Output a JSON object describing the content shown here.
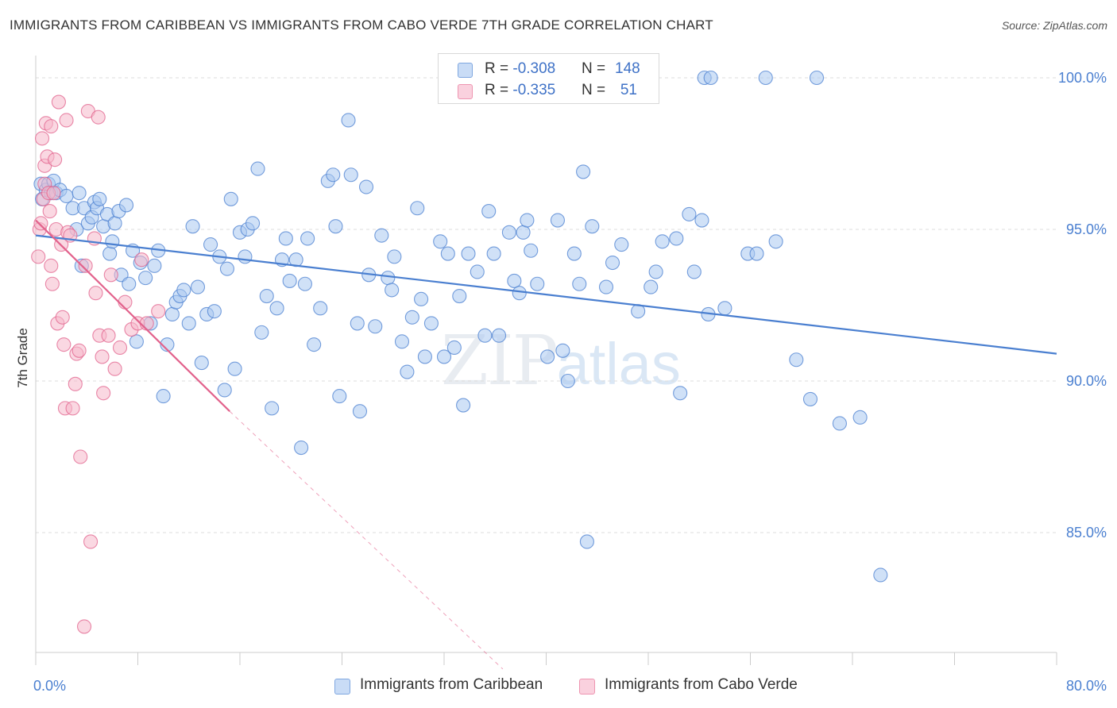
{
  "header": {
    "title": "IMMIGRANTS FROM CARIBBEAN VS IMMIGRANTS FROM CABO VERDE 7TH GRADE CORRELATION CHART",
    "source": "Source: ZipAtlas.com"
  },
  "watermark": {
    "zip": "ZIP",
    "atlas": "atlas"
  },
  "legend": {
    "rows": [
      {
        "r_label": "R = ",
        "r_value": "-0.308",
        "n_label": "N = ",
        "n_value": "148",
        "color": "#a9c8f0"
      },
      {
        "r_label": "R = ",
        "r_value": "-0.335",
        "n_label": "N = ",
        "n_value": "51",
        "color": "#f6b8cb"
      }
    ]
  },
  "bottom_legend": {
    "items": [
      {
        "label": "Immigrants from Caribbean",
        "color": "#a9c8f0"
      },
      {
        "label": "Immigrants from Cabo Verde",
        "color": "#f6b8cb"
      }
    ]
  },
  "chart_data": {
    "type": "scatter",
    "title": "IMMIGRANTS FROM CARIBBEAN VS IMMIGRANTS FROM CABO VERDE 7TH GRADE CORRELATION CHART",
    "xlabel": "",
    "ylabel": "7th Grade",
    "xlim": [
      0,
      80
    ],
    "ylim": [
      80.5,
      100.8
    ],
    "x_ticks": [
      "0.0%",
      "80.0%"
    ],
    "y_ticks": [
      {
        "value": 100,
        "label": "100.0%"
      },
      {
        "value": 95,
        "label": "95.0%"
      },
      {
        "value": 90,
        "label": "90.0%"
      },
      {
        "value": 85,
        "label": "85.0%"
      }
    ],
    "grid": true,
    "legend_position": "top-center",
    "series": [
      {
        "name": "Immigrants from Caribbean",
        "color": "#4a7fd0",
        "fill": "#a9c8f0",
        "trend": {
          "x": [
            0,
            80
          ],
          "y": [
            94.8,
            90.9
          ]
        },
        "points": [
          [
            0.4,
            96.5
          ],
          [
            0.5,
            96.0
          ],
          [
            0.8,
            96.3
          ],
          [
            1.0,
            96.5
          ],
          [
            1.2,
            96.2
          ],
          [
            1.4,
            96.6
          ],
          [
            1.6,
            96.2
          ],
          [
            1.9,
            96.3
          ],
          [
            2.4,
            96.1
          ],
          [
            2.9,
            95.7
          ],
          [
            3.2,
            95.0
          ],
          [
            3.4,
            96.2
          ],
          [
            3.6,
            93.8
          ],
          [
            3.8,
            95.7
          ],
          [
            4.1,
            95.2
          ],
          [
            4.4,
            95.4
          ],
          [
            4.6,
            95.9
          ],
          [
            4.8,
            95.7
          ],
          [
            5.0,
            96.0
          ],
          [
            5.3,
            95.1
          ],
          [
            5.6,
            95.5
          ],
          [
            5.8,
            94.2
          ],
          [
            6.0,
            94.6
          ],
          [
            6.2,
            95.2
          ],
          [
            6.5,
            95.6
          ],
          [
            6.7,
            93.5
          ],
          [
            7.1,
            95.8
          ],
          [
            7.3,
            93.2
          ],
          [
            7.6,
            94.3
          ],
          [
            7.9,
            91.3
          ],
          [
            8.2,
            93.9
          ],
          [
            8.6,
            93.4
          ],
          [
            9.0,
            91.9
          ],
          [
            9.3,
            93.8
          ],
          [
            9.6,
            94.3
          ],
          [
            10.0,
            89.5
          ],
          [
            10.3,
            91.2
          ],
          [
            10.7,
            92.2
          ],
          [
            11.0,
            92.6
          ],
          [
            11.3,
            92.8
          ],
          [
            11.6,
            93.0
          ],
          [
            12.0,
            91.9
          ],
          [
            12.3,
            95.1
          ],
          [
            12.7,
            93.1
          ],
          [
            13.0,
            90.6
          ],
          [
            13.4,
            92.2
          ],
          [
            13.7,
            94.5
          ],
          [
            14.0,
            92.3
          ],
          [
            14.4,
            94.1
          ],
          [
            14.8,
            89.7
          ],
          [
            15.0,
            93.7
          ],
          [
            15.3,
            96.0
          ],
          [
            15.6,
            90.4
          ],
          [
            16.0,
            94.9
          ],
          [
            16.4,
            94.1
          ],
          [
            16.6,
            95.0
          ],
          [
            17.0,
            95.2
          ],
          [
            17.4,
            97.0
          ],
          [
            17.7,
            91.6
          ],
          [
            18.1,
            92.8
          ],
          [
            18.5,
            89.1
          ],
          [
            18.9,
            92.4
          ],
          [
            19.3,
            94.0
          ],
          [
            19.6,
            94.7
          ],
          [
            19.9,
            93.3
          ],
          [
            20.4,
            94.0
          ],
          [
            20.8,
            87.8
          ],
          [
            21.1,
            93.2
          ],
          [
            21.3,
            94.7
          ],
          [
            21.8,
            91.2
          ],
          [
            22.3,
            92.4
          ],
          [
            22.9,
            96.6
          ],
          [
            23.3,
            96.8
          ],
          [
            23.5,
            95.1
          ],
          [
            23.8,
            89.5
          ],
          [
            24.5,
            98.6
          ],
          [
            24.7,
            96.8
          ],
          [
            25.2,
            91.9
          ],
          [
            25.4,
            89.0
          ],
          [
            25.9,
            96.4
          ],
          [
            26.1,
            93.5
          ],
          [
            26.6,
            91.8
          ],
          [
            27.1,
            94.8
          ],
          [
            27.6,
            93.4
          ],
          [
            27.9,
            93.0
          ],
          [
            28.1,
            94.1
          ],
          [
            28.7,
            91.3
          ],
          [
            29.1,
            90.3
          ],
          [
            29.5,
            92.1
          ],
          [
            29.9,
            95.7
          ],
          [
            30.2,
            92.7
          ],
          [
            30.5,
            90.8
          ],
          [
            31.0,
            91.9
          ],
          [
            31.7,
            94.6
          ],
          [
            32.0,
            90.8
          ],
          [
            32.3,
            94.2
          ],
          [
            32.8,
            91.1
          ],
          [
            33.2,
            92.8
          ],
          [
            33.5,
            89.2
          ],
          [
            33.9,
            94.2
          ],
          [
            34.6,
            93.6
          ],
          [
            35.2,
            91.5
          ],
          [
            35.5,
            95.6
          ],
          [
            35.9,
            94.2
          ],
          [
            36.3,
            91.5
          ],
          [
            37.1,
            94.9
          ],
          [
            37.5,
            93.3
          ],
          [
            37.9,
            92.9
          ],
          [
            38.2,
            94.9
          ],
          [
            38.5,
            95.3
          ],
          [
            38.8,
            94.3
          ],
          [
            39.3,
            93.2
          ],
          [
            40.1,
            90.8
          ],
          [
            40.9,
            95.3
          ],
          [
            41.3,
            91.0
          ],
          [
            41.7,
            90.0
          ],
          [
            42.2,
            94.2
          ],
          [
            42.6,
            93.2
          ],
          [
            42.9,
            96.9
          ],
          [
            43.2,
            84.7
          ],
          [
            43.6,
            95.1
          ],
          [
            44.7,
            93.1
          ],
          [
            45.2,
            93.9
          ],
          [
            45.9,
            94.5
          ],
          [
            47.2,
            92.3
          ],
          [
            48.2,
            93.1
          ],
          [
            48.6,
            93.6
          ],
          [
            49.1,
            94.6
          ],
          [
            50.2,
            94.7
          ],
          [
            50.5,
            89.6
          ],
          [
            51.2,
            95.5
          ],
          [
            51.6,
            93.6
          ],
          [
            52.2,
            95.3
          ],
          [
            52.4,
            100.0
          ],
          [
            52.7,
            92.2
          ],
          [
            52.9,
            100.0
          ],
          [
            54.0,
            92.4
          ],
          [
            55.8,
            94.2
          ],
          [
            56.5,
            94.2
          ],
          [
            57.2,
            100.0
          ],
          [
            58.0,
            94.6
          ],
          [
            59.6,
            90.7
          ],
          [
            60.7,
            89.4
          ],
          [
            61.2,
            100.0
          ],
          [
            63.0,
            88.6
          ],
          [
            64.6,
            88.8
          ],
          [
            66.2,
            83.6
          ]
        ]
      },
      {
        "name": "Immigrants from Cabo Verde",
        "color": "#e2628c",
        "fill": "#f6b8cb",
        "trend": {
          "x": [
            0,
            15.2
          ],
          "y": [
            95.3,
            89.0
          ]
        },
        "trend_extended": {
          "x": [
            15.2,
            36.6
          ],
          "y": [
            89.0,
            80.5
          ]
        },
        "points": [
          [
            0.2,
            94.1
          ],
          [
            0.3,
            95.0
          ],
          [
            0.4,
            95.2
          ],
          [
            0.5,
            98.0
          ],
          [
            0.6,
            96.0
          ],
          [
            0.7,
            96.5
          ],
          [
            0.7,
            97.1
          ],
          [
            0.8,
            98.5
          ],
          [
            0.9,
            97.4
          ],
          [
            1.0,
            96.2
          ],
          [
            1.1,
            95.6
          ],
          [
            1.2,
            98.4
          ],
          [
            1.2,
            93.8
          ],
          [
            1.3,
            93.2
          ],
          [
            1.4,
            96.2
          ],
          [
            1.5,
            97.3
          ],
          [
            1.6,
            95.0
          ],
          [
            1.7,
            91.9
          ],
          [
            1.8,
            99.2
          ],
          [
            2.0,
            94.5
          ],
          [
            2.1,
            92.1
          ],
          [
            2.2,
            91.2
          ],
          [
            2.3,
            89.1
          ],
          [
            2.4,
            98.6
          ],
          [
            2.5,
            94.9
          ],
          [
            2.7,
            94.8
          ],
          [
            2.9,
            89.1
          ],
          [
            3.1,
            89.9
          ],
          [
            3.2,
            90.9
          ],
          [
            3.4,
            91.0
          ],
          [
            3.5,
            87.5
          ],
          [
            3.8,
            81.9
          ],
          [
            3.9,
            93.8
          ],
          [
            4.1,
            98.9
          ],
          [
            4.3,
            84.7
          ],
          [
            4.6,
            94.7
          ],
          [
            4.7,
            92.9
          ],
          [
            4.9,
            98.7
          ],
          [
            5.0,
            91.5
          ],
          [
            5.2,
            90.8
          ],
          [
            5.3,
            89.6
          ],
          [
            5.7,
            91.5
          ],
          [
            5.9,
            93.5
          ],
          [
            6.2,
            90.4
          ],
          [
            6.6,
            91.1
          ],
          [
            7.0,
            92.6
          ],
          [
            7.5,
            91.7
          ],
          [
            8.0,
            91.9
          ],
          [
            8.3,
            94.0
          ],
          [
            8.7,
            91.9
          ],
          [
            9.6,
            92.3
          ]
        ]
      }
    ]
  }
}
